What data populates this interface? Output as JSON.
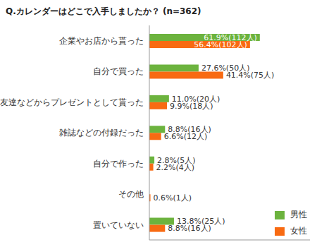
{
  "chart_data": {
    "type": "bar",
    "title": "Q.カレンダーはどこで入手しましたか？ (n=362)",
    "orientation": "horizontal",
    "categories": [
      "企業やお店から貰った",
      "自分で買った",
      "友達などからプレゼントとして貰った",
      "雑誌などの付録だった",
      "自分で作った",
      "その他",
      "置いていない"
    ],
    "series": [
      {
        "name": "男性",
        "color": "#6cb33e",
        "values": [
          61.9,
          27.6,
          11.0,
          8.8,
          2.8,
          null,
          13.8
        ],
        "value_labels": [
          "61.9%(112人)",
          "27.6%(50人)",
          "11.0%(20人)",
          "8.8%(16人)",
          "2.8%(5人)",
          null,
          "13.8%(25人)"
        ]
      },
      {
        "name": "女性",
        "color": "#f86a12",
        "values": [
          56.4,
          41.4,
          9.9,
          6.6,
          2.2,
          0.6,
          8.8
        ],
        "value_labels": [
          "56.4%(102人)",
          "41.4%(75人)",
          "9.9%(18人)",
          "6.6%(12人)",
          "2.2%(4人)",
          "0.6%(1人)",
          "8.8%(16人)"
        ]
      }
    ],
    "xlim": [
      0,
      90
    ],
    "data_labels": true,
    "tick_labels": "y",
    "grid": false,
    "legend": "lower right"
  }
}
